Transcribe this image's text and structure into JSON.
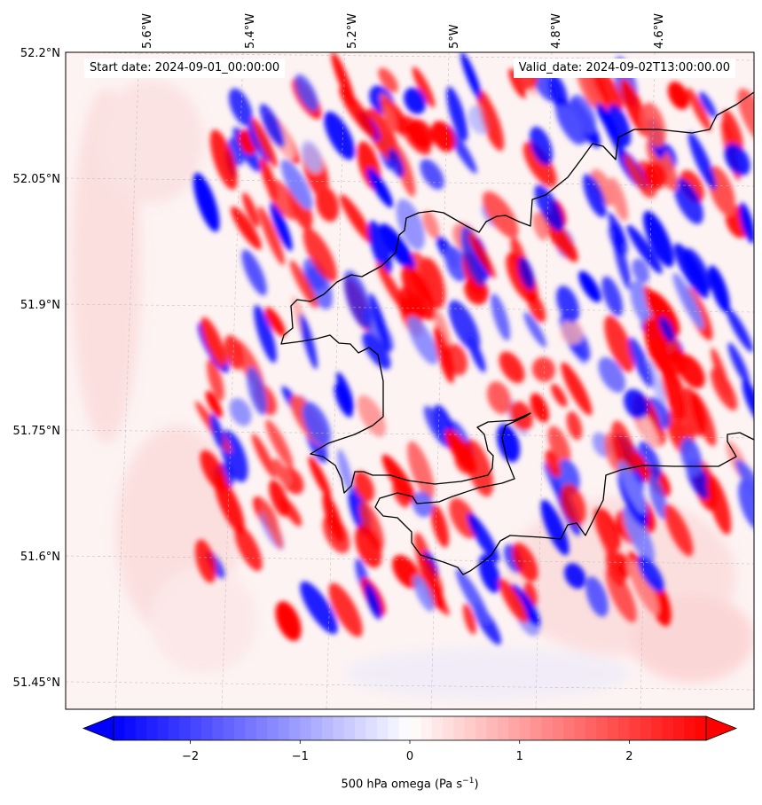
{
  "map": {
    "start_date": "Start date: 2024-09-01_00:00:00",
    "valid_date": "Valid_date: 2024-09-02T13:00:00.00",
    "variable_label": "500 hPa omega (Pa s",
    "variable_unit_sup": "−1",
    "variable_label_end": ")",
    "longitude_ticks": [
      "5.6°W",
      "5.4°W",
      "5.2°W",
      "5°W",
      "4.8°W",
      "4.6°W"
    ],
    "latitude_ticks": [
      "52.2°N",
      "52.05°N",
      "51.9°N",
      "51.75°N",
      "51.6°N",
      "51.45°N"
    ],
    "colorbar": {
      "ticks": [
        "−2",
        "−1",
        "0",
        "1",
        "2"
      ],
      "range": [
        -2.7,
        2.7
      ],
      "low_color": "#0000ff",
      "mid_color": "#ffffff",
      "high_color": "#ff0000"
    },
    "coastline_color": "#000000",
    "gridline_color": "#bbbbbb"
  }
}
